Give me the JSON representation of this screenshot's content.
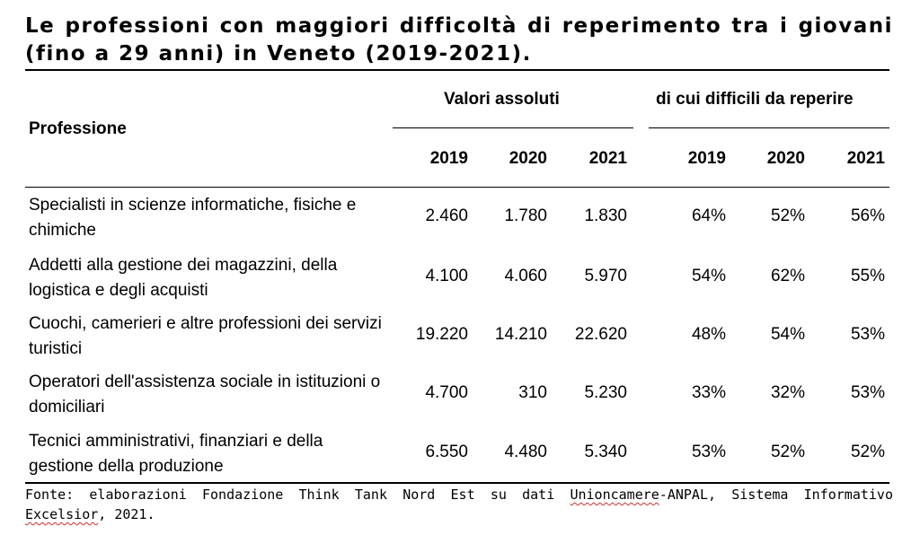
{
  "title": "Le professioni con maggiori difficoltà di reperimento tra i giovani (fino a 29 anni) in Veneto (2019-2021).",
  "table": {
    "col_profession": "Professione",
    "group_absolute": "Valori assoluti",
    "group_difficult": "di cui difficili da reperire",
    "years": [
      "2019",
      "2020",
      "2021",
      "2019",
      "2020",
      "2021"
    ],
    "rows": [
      {
        "profession": "Specialisti in scienze informatiche, fisiche e chimiche",
        "values": [
          "2.460",
          "1.780",
          "1.830",
          "64%",
          "52%",
          "56%"
        ]
      },
      {
        "profession": "Addetti alla gestione dei magazzini, della logistica e degli acquisti",
        "values": [
          "4.100",
          "4.060",
          "5.970",
          "54%",
          "62%",
          "55%"
        ]
      },
      {
        "profession": "Cuochi, camerieri e altre professioni dei servizi turistici",
        "values": [
          "19.220",
          "14.210",
          "22.620",
          "48%",
          "54%",
          "53%"
        ]
      },
      {
        "profession": "Operatori dell'assistenza sociale in istituzioni o domiciliari",
        "values": [
          "4.700",
          "310",
          "5.230",
          "33%",
          "32%",
          "53%"
        ]
      },
      {
        "profession": "Tecnici amministrativi, finanziari e della gestione della produzione",
        "values": [
          "6.550",
          "4.480",
          "5.340",
          "53%",
          "52%",
          "52%"
        ]
      }
    ]
  },
  "source": {
    "prefix": "Fonte: elaborazioni Fondazione Think Tank Nord Est su dati ",
    "word1": "Unioncamere",
    "middle": "-ANPAL, Sistema Informativo ",
    "word2": "Excelsior",
    "suffix": ", 2021."
  }
}
